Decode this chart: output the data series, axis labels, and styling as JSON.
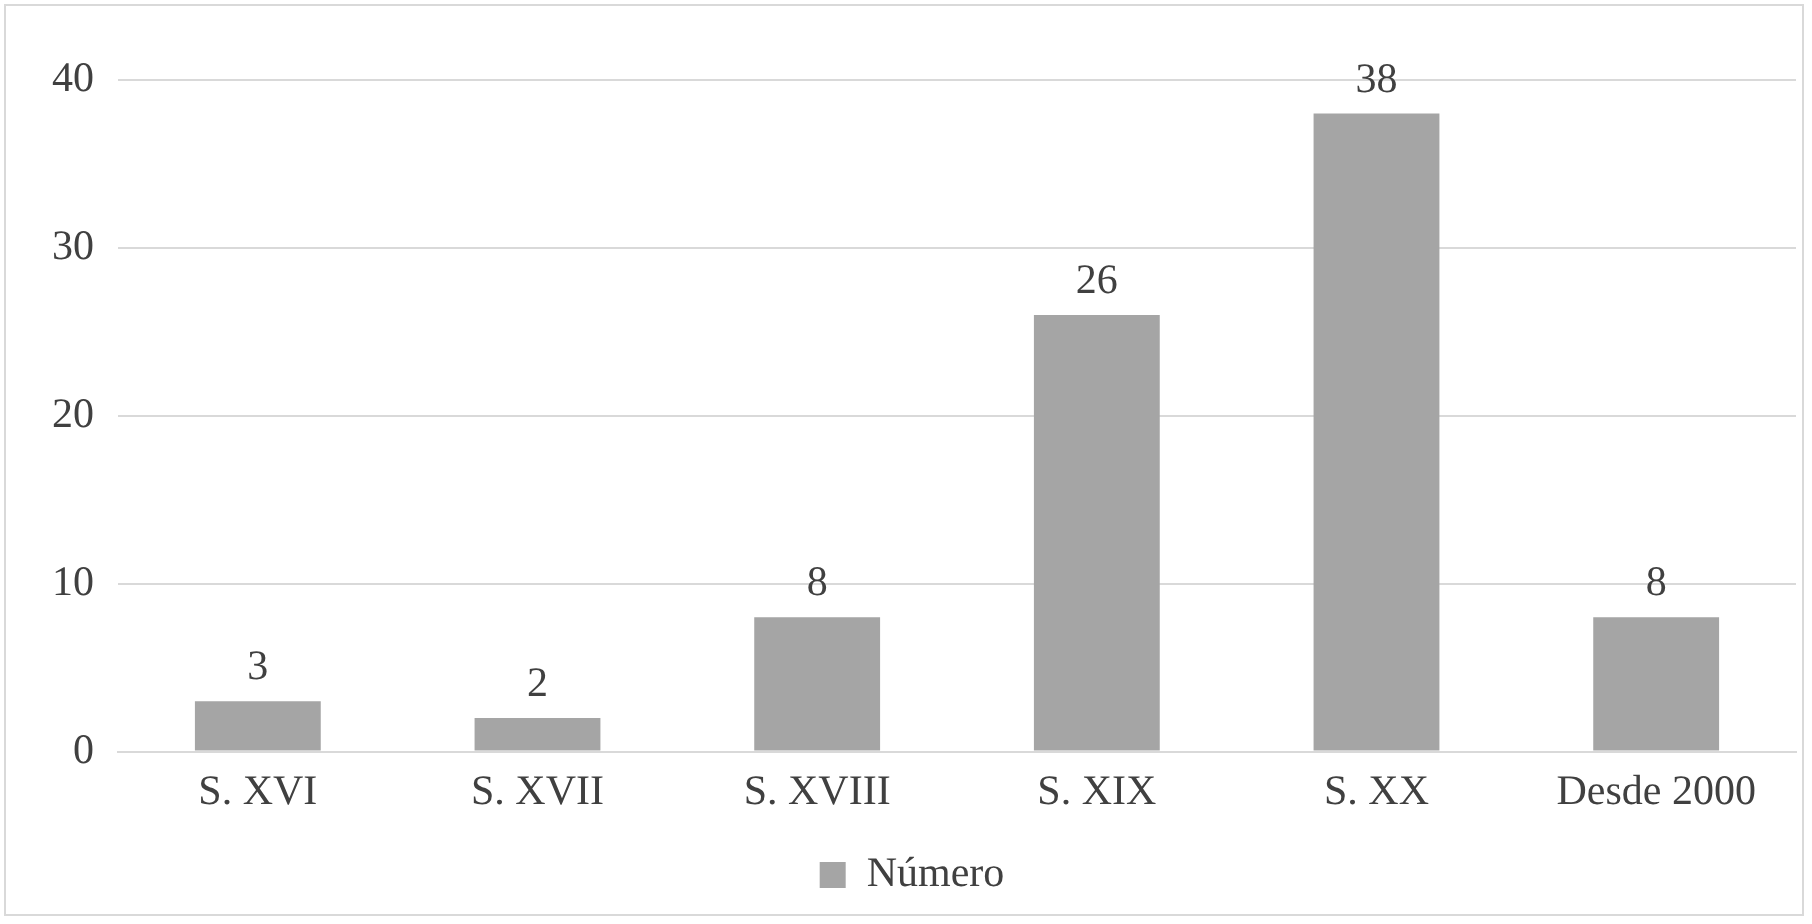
{
  "chart_data": {
    "type": "bar",
    "categories": [
      "S. XVI",
      "S. XVII",
      "S. XVIII",
      "S. XIX",
      "S. XX",
      "Desde 2000"
    ],
    "series": [
      {
        "name": "Número",
        "color": "#a5a5a5",
        "values": [
          3,
          2,
          8,
          26,
          38,
          8
        ]
      }
    ],
    "ylim": [
      0,
      40
    ],
    "yticks": [
      0,
      10,
      20,
      30,
      40
    ],
    "grid": "y",
    "legend": "bottom",
    "data_labels": true
  }
}
